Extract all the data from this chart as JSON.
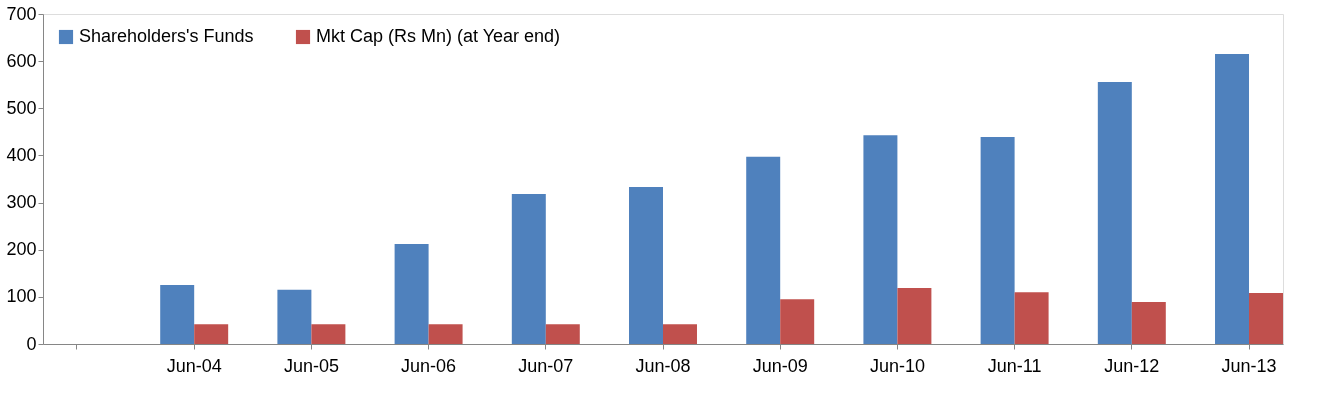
{
  "chart_data": {
    "type": "bar",
    "categories": [
      null,
      "Jun-04",
      "Jun-05",
      "Jun-06",
      "Jun-07",
      "Jun-08",
      "Jun-09",
      "Jun-10",
      "Jun-11",
      "Jun-12",
      "Jun-13"
    ],
    "series": [
      {
        "name": "Shareholders's Funds",
        "color": "#4f81bd",
        "values": [
          null,
          125,
          115,
          212,
          318,
          333,
          397,
          443,
          439,
          556,
          615
        ]
      },
      {
        "name": "Mkt Cap (Rs Mn) (at Year end)",
        "color": "#c0504d",
        "values": [
          null,
          42,
          42,
          42,
          42,
          42,
          95,
          119,
          110,
          89,
          108
        ]
      }
    ],
    "ylim": [
      0,
      700
    ],
    "yticks": [
      0,
      100,
      200,
      300,
      400,
      500,
      600,
      700
    ],
    "grid": false,
    "legend": "top left"
  }
}
